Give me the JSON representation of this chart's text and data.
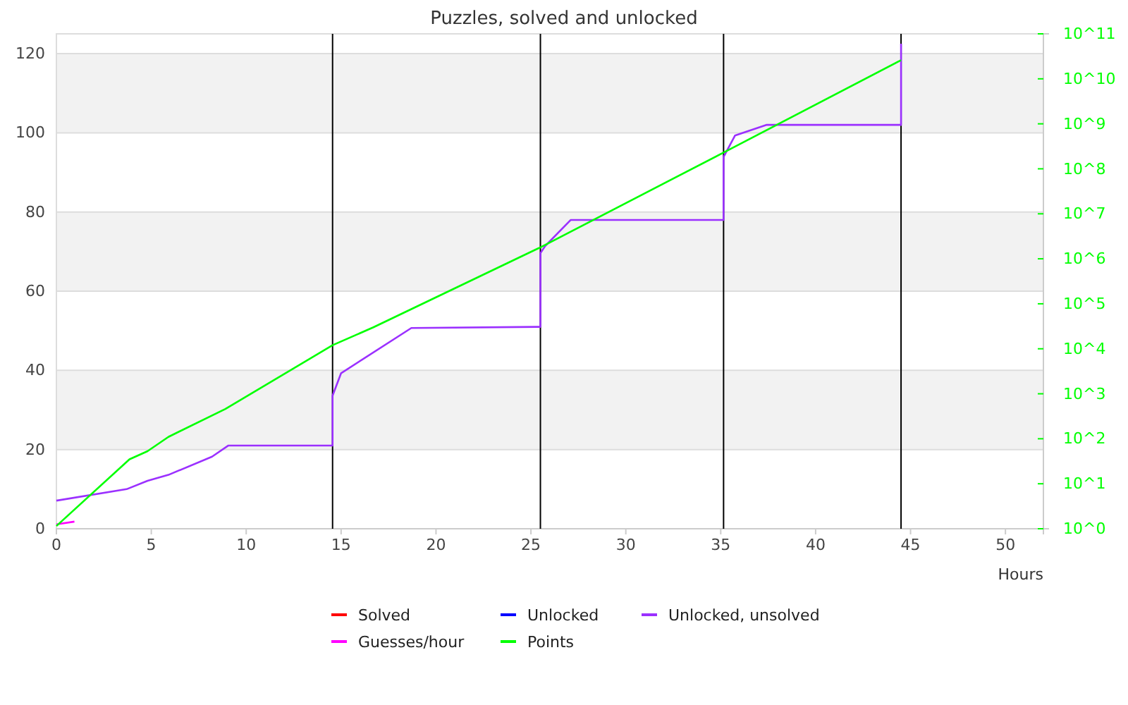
{
  "chart_data": {
    "type": "line",
    "title": "Puzzles, solved and unlocked",
    "xlabel": "Hours",
    "xlim": [
      0,
      52
    ],
    "xticks": [
      0,
      5,
      10,
      15,
      20,
      25,
      30,
      35,
      40,
      45,
      50
    ],
    "ylim": [
      0,
      125
    ],
    "yticks": [
      0,
      20,
      40,
      60,
      80,
      100,
      120
    ],
    "y2lim": [
      1,
      100000000000
    ],
    "y2ticks": [
      {
        "value": 1,
        "label": "10^0"
      },
      {
        "value": 10,
        "label": "10^1"
      },
      {
        "value": 100,
        "label": "10^2"
      },
      {
        "value": 1000,
        "label": "10^3"
      },
      {
        "value": 10000,
        "label": "10^4"
      },
      {
        "value": 100000,
        "label": "10^5"
      },
      {
        "value": 1000000,
        "label": "10^6"
      },
      {
        "value": 10000000,
        "label": "10^7"
      },
      {
        "value": 100000000,
        "label": "10^8"
      },
      {
        "value": 1000000000,
        "label": "10^9"
      },
      {
        "value": 10000000000,
        "label": "10^10"
      },
      {
        "value": 100000000000,
        "label": "10^11"
      }
    ],
    "log": "y2",
    "grid": "y",
    "legend": "bottom",
    "marker": "none",
    "line_style": "solid",
    "bands": [
      {
        "axis": "y",
        "from": 20,
        "to": 40,
        "color": "#f2f2f2"
      },
      {
        "axis": "y",
        "from": 60,
        "to": 80,
        "color": "#f2f2f2"
      },
      {
        "axis": "y",
        "from": 100,
        "to": 120,
        "color": "#f2f2f2"
      }
    ],
    "ref_lines": [
      {
        "axis": "x",
        "value": 14.55,
        "color": "#000000"
      },
      {
        "axis": "x",
        "value": 25.5,
        "color": "#000000"
      },
      {
        "axis": "x",
        "value": 35.15,
        "color": "#000000"
      },
      {
        "axis": "x",
        "value": 44.5,
        "color": "#000000"
      }
    ],
    "series": [
      {
        "name": "Solved",
        "color": "#ff0000"
      },
      {
        "name": "Unlocked",
        "color": "#0000ff"
      },
      {
        "name": "Unlocked, unsolved",
        "color": "#9b30ff",
        "x": [
          0,
          3.7,
          4.8,
          5.9,
          8.2,
          9.05,
          14.55,
          14.55,
          15.0,
          18.7,
          25.5,
          25.5,
          25.75,
          27.1,
          35.15,
          35.15,
          35.75,
          37.4,
          44.5,
          44.5
        ],
        "values": [
          7.1,
          10,
          12.1,
          13.6,
          18.2,
          21,
          21,
          33.6,
          39.3,
          50.7,
          51,
          69.6,
          71.4,
          78,
          78,
          93.9,
          99.3,
          102,
          102,
          122.5
        ]
      },
      {
        "name": "Guesses/hour",
        "color": "#ff00ff",
        "x": [
          0,
          0.95
        ],
        "values": [
          1.1,
          1.8
        ]
      },
      {
        "name": "Points",
        "color": "#00ff00",
        "axis": "y2",
        "x": [
          0,
          3.85,
          4.8,
          5.9,
          8.9,
          14.55,
          16.7,
          25.5,
          35.15,
          44.5
        ],
        "values": [
          1.15,
          35,
          53,
          110,
          460,
          12000,
          30000,
          1800000,
          230000000,
          26000000000
        ]
      }
    ]
  }
}
